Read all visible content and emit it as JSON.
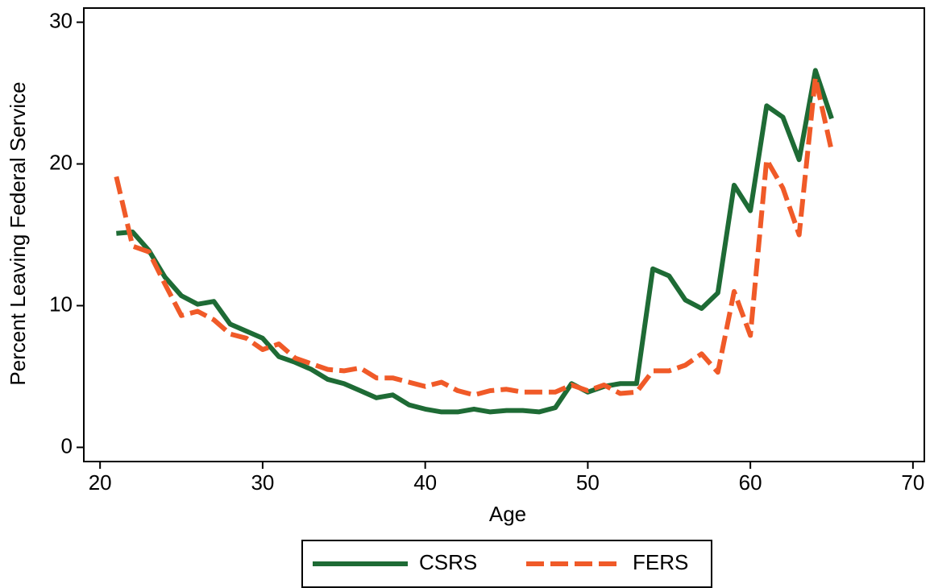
{
  "chart_data": {
    "type": "line",
    "x_label": "Age",
    "y_label": "Percent Leaving Federal Service",
    "x": [
      21,
      22,
      23,
      24,
      25,
      26,
      27,
      28,
      29,
      30,
      31,
      32,
      33,
      34,
      35,
      36,
      37,
      38,
      39,
      40,
      41,
      42,
      43,
      44,
      45,
      46,
      47,
      48,
      49,
      50,
      51,
      52,
      53,
      54,
      55,
      56,
      57,
      58,
      59,
      60,
      61,
      62,
      63,
      64,
      65
    ],
    "series": [
      {
        "name": "CSRS",
        "color": "#1e6b35",
        "dash": false,
        "values": [
          15.1,
          15.2,
          13.9,
          12,
          10.7,
          10.1,
          10.3,
          8.7,
          8.2,
          7.7,
          6.4,
          6,
          5.5,
          4.8,
          4.5,
          4,
          3.5,
          3.7,
          3,
          2.7,
          2.5,
          2.5,
          2.7,
          2.5,
          2.6,
          2.6,
          2.5,
          2.8,
          4.5,
          3.9,
          4.3,
          4.5,
          4.5,
          12.6,
          12.1,
          10.4,
          9.8,
          10.9,
          18.5,
          16.7,
          24.1,
          23.3,
          20.3,
          26.6,
          23.2
        ]
      },
      {
        "name": "FERS",
        "color": "#f05a28",
        "dash": true,
        "values": [
          19.1,
          14.2,
          13.8,
          11.5,
          9.3,
          9.6,
          9,
          8,
          7.7,
          6.9,
          7.3,
          6.3,
          5.9,
          5.5,
          5.4,
          5.6,
          4.9,
          4.9,
          4.6,
          4.3,
          4.6,
          4,
          3.7,
          4,
          4.1,
          3.9,
          3.9,
          3.9,
          4.4,
          4,
          4.4,
          3.8,
          3.9,
          5.4,
          5.4,
          5.8,
          6.6,
          5.3,
          11,
          7.9,
          20.3,
          18.3,
          15,
          26.1,
          20.9
        ]
      }
    ],
    "xlim": [
      19,
      70.7
    ],
    "ylim": [
      -1,
      31
    ],
    "xticks": [
      20,
      30,
      40,
      50,
      60,
      70
    ],
    "yticks": [
      0,
      10,
      20,
      30
    ],
    "grid": false,
    "legend": "bottom"
  }
}
